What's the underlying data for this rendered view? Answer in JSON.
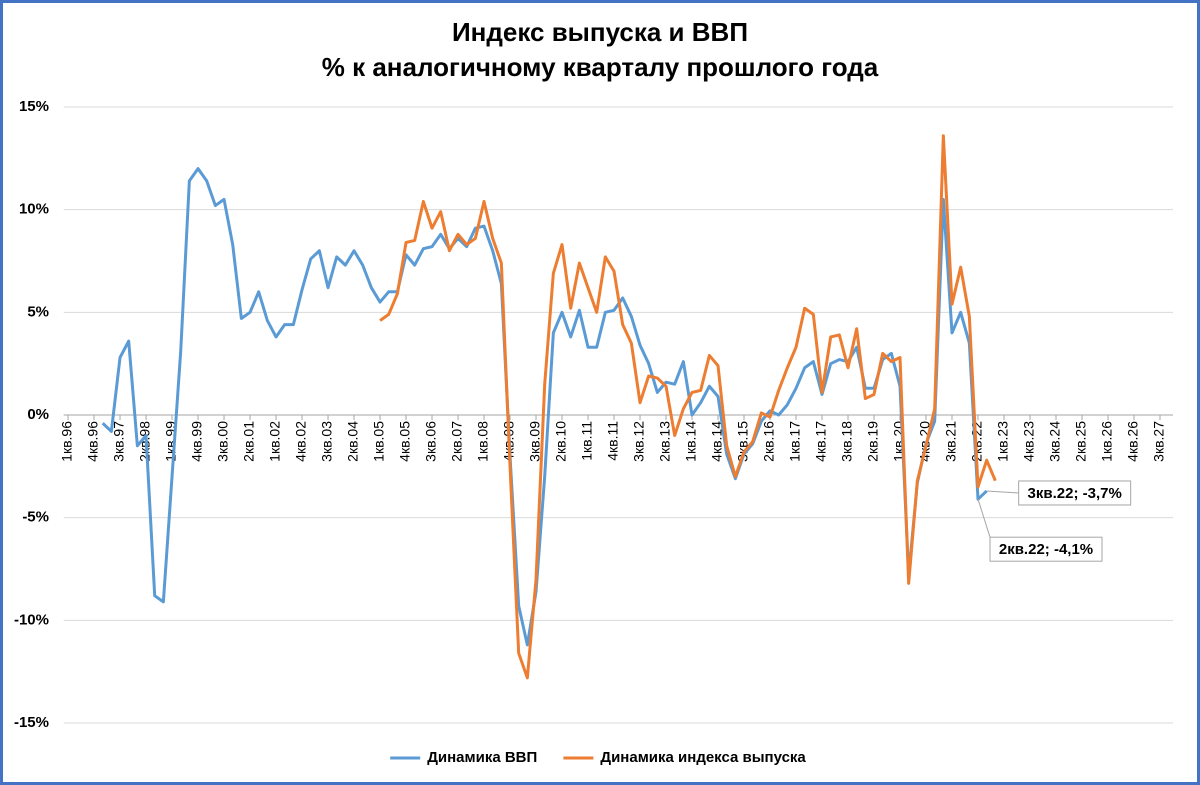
{
  "chart_data": {
    "type": "line",
    "title": "Индекс выпуска и ВВП",
    "subtitle": "% к аналогичному кварталу прошлого года",
    "categories": [
      "1кв.96",
      null,
      null,
      "4кв.96",
      null,
      null,
      "3кв.97",
      null,
      null,
      "2кв.98",
      null,
      null,
      "1кв.99",
      null,
      null,
      "4кв.99",
      null,
      null,
      "3кв.00",
      null,
      null,
      "2кв.01",
      null,
      null,
      "1кв.02",
      null,
      null,
      "4кв.02",
      null,
      null,
      "3кв.03",
      null,
      null,
      "2кв.04",
      null,
      null,
      "1кв.05",
      null,
      null,
      "4кв.05",
      null,
      null,
      "3кв.06",
      null,
      null,
      "2кв.07",
      null,
      null,
      "1кв.08",
      null,
      null,
      "4кв.08",
      null,
      null,
      "3кв.09",
      null,
      null,
      "2кв.10",
      null,
      null,
      "1кв.11",
      null,
      null,
      "4кв.11",
      null,
      null,
      "3кв.12",
      null,
      null,
      "2кв.13",
      null,
      null,
      "1кв.14",
      null,
      null,
      "4кв.14",
      null,
      null,
      "3кв.15",
      null,
      null,
      "2кв.16",
      null,
      null,
      "1кв.17",
      null,
      null,
      "4кв.17",
      null,
      null,
      "3кв.18",
      null,
      null,
      "2кв.19",
      null,
      null,
      "1кв.20",
      null,
      null,
      "4кв.20",
      null,
      null,
      "3кв.21",
      null,
      null,
      "2кв.22",
      null,
      null,
      "1кв.23",
      null,
      null,
      "4кв.23",
      null,
      null,
      "3кв.24",
      null,
      null,
      "2кв.25",
      null,
      null,
      "1кв.26",
      null,
      null,
      "4кв.26",
      null,
      null,
      "3кв.27",
      null
    ],
    "series": [
      {
        "name": "Динамика ВВП",
        "color": "#5b9bd5",
        "values": [
          null,
          null,
          null,
          null,
          -0.4,
          -0.8,
          2.8,
          3.6,
          -1.5,
          -1.0,
          -8.8,
          -9.1,
          -3.0,
          3.1,
          11.4,
          12.0,
          11.4,
          10.2,
          10.5,
          8.3,
          4.7,
          5.0,
          6.0,
          4.6,
          3.8,
          4.4,
          4.4,
          6.1,
          7.6,
          8.0,
          6.2,
          7.7,
          7.3,
          8.0,
          7.3,
          6.2,
          5.5,
          6.0,
          6.0,
          7.8,
          7.3,
          8.1,
          8.2,
          8.8,
          8.1,
          8.6,
          8.2,
          9.1,
          9.2,
          8.0,
          6.4,
          -2.0,
          -9.3,
          -11.2,
          -8.6,
          -3.0,
          4.0,
          5.0,
          3.8,
          5.1,
          3.3,
          3.3,
          5.0,
          5.1,
          5.7,
          4.8,
          3.4,
          2.5,
          1.1,
          1.6,
          1.5,
          2.6,
          0.0,
          0.6,
          1.4,
          0.9,
          -1.9,
          -3.1,
          -1.9,
          -1.4,
          -0.3,
          0.2,
          0.0,
          0.5,
          1.3,
          2.3,
          2.6,
          1.0,
          2.5,
          2.7,
          2.6,
          3.3,
          1.3,
          1.3,
          2.7,
          3.0,
          1.4,
          -7.8,
          -3.3,
          -1.4,
          -0.3,
          10.5,
          4.0,
          5.0,
          3.5,
          -4.1,
          -3.7,
          null,
          null,
          null,
          null,
          null,
          null,
          null,
          null,
          null,
          null,
          null,
          null,
          null,
          null,
          null,
          null,
          null,
          null,
          null,
          null,
          null
        ],
        "value_labels": [
          null,
          null,
          null,
          null,
          null,
          null,
          null,
          null,
          null,
          null,
          null,
          null,
          null,
          null,
          null,
          null,
          null,
          null,
          null,
          null,
          null,
          null,
          null,
          null,
          null,
          null,
          null,
          null,
          null,
          null,
          null,
          null,
          null,
          null,
          null,
          null,
          null,
          null,
          null,
          null,
          null,
          null,
          null,
          null,
          null,
          null,
          null,
          null,
          null,
          null,
          null,
          null,
          null,
          null,
          null,
          null,
          null,
          null,
          null,
          null,
          null,
          null,
          null,
          null,
          null,
          null,
          null,
          null,
          null,
          null,
          null,
          null,
          null,
          null,
          null,
          null,
          null,
          null,
          null,
          null,
          null,
          null,
          null,
          null,
          null,
          null,
          null,
          null,
          null,
          null,
          null,
          null,
          null,
          null,
          null,
          null,
          null,
          null,
          null,
          null,
          null,
          null,
          null,
          null,
          null,
          "2кв.22; -4,1%",
          "3кв.22; -3,7%",
          null,
          null,
          null,
          null,
          null,
          null,
          null,
          null,
          null,
          null,
          null,
          null,
          null,
          null,
          null,
          null,
          null,
          null,
          null,
          null,
          null
        ]
      },
      {
        "name": "Динамика индекса выпуска",
        "color": "#ed7d31",
        "values": [
          null,
          null,
          null,
          null,
          null,
          null,
          null,
          null,
          null,
          null,
          null,
          null,
          null,
          null,
          null,
          null,
          null,
          null,
          null,
          null,
          null,
          null,
          null,
          null,
          null,
          null,
          null,
          null,
          null,
          null,
          null,
          null,
          null,
          null,
          null,
          null,
          4.6,
          4.9,
          5.9,
          8.4,
          8.5,
          10.4,
          9.1,
          9.9,
          8.0,
          8.8,
          8.3,
          8.6,
          10.4,
          8.6,
          7.4,
          -2.5,
          -11.6,
          -12.8,
          -8.0,
          1.5,
          6.9,
          8.3,
          5.2,
          7.4,
          6.2,
          5.0,
          7.7,
          7.0,
          4.4,
          3.5,
          0.6,
          1.9,
          1.8,
          1.4,
          -1.0,
          0.3,
          1.1,
          1.2,
          2.9,
          2.4,
          -1.5,
          -3.0,
          -1.8,
          -1.3,
          0.1,
          -0.1,
          1.2,
          2.3,
          3.3,
          5.2,
          4.9,
          1.1,
          3.8,
          3.9,
          2.3,
          4.2,
          0.8,
          1.0,
          3.0,
          2.6,
          2.8,
          -8.2,
          -3.2,
          -1.5,
          0.3,
          13.6,
          5.4,
          7.2,
          4.8,
          -3.5,
          -2.2,
          -3.2,
          null,
          null,
          null,
          null,
          null,
          null,
          null,
          null,
          null,
          null,
          null,
          null,
          null,
          null,
          null,
          null,
          null,
          null,
          null,
          null
        ]
      }
    ],
    "ylim": [
      -15,
      15
    ],
    "yticks": [
      {
        "value": -15,
        "label": "-15%"
      },
      {
        "value": -10,
        "label": "-10%"
      },
      {
        "value": -5,
        "label": "-5%"
      },
      {
        "value": 0,
        "label": "0%"
      },
      {
        "value": 5,
        "label": "5%"
      },
      {
        "value": 10,
        "label": "10%"
      },
      {
        "value": 15,
        "label": "15%"
      }
    ],
    "grid": true,
    "legend": "bottom"
  }
}
